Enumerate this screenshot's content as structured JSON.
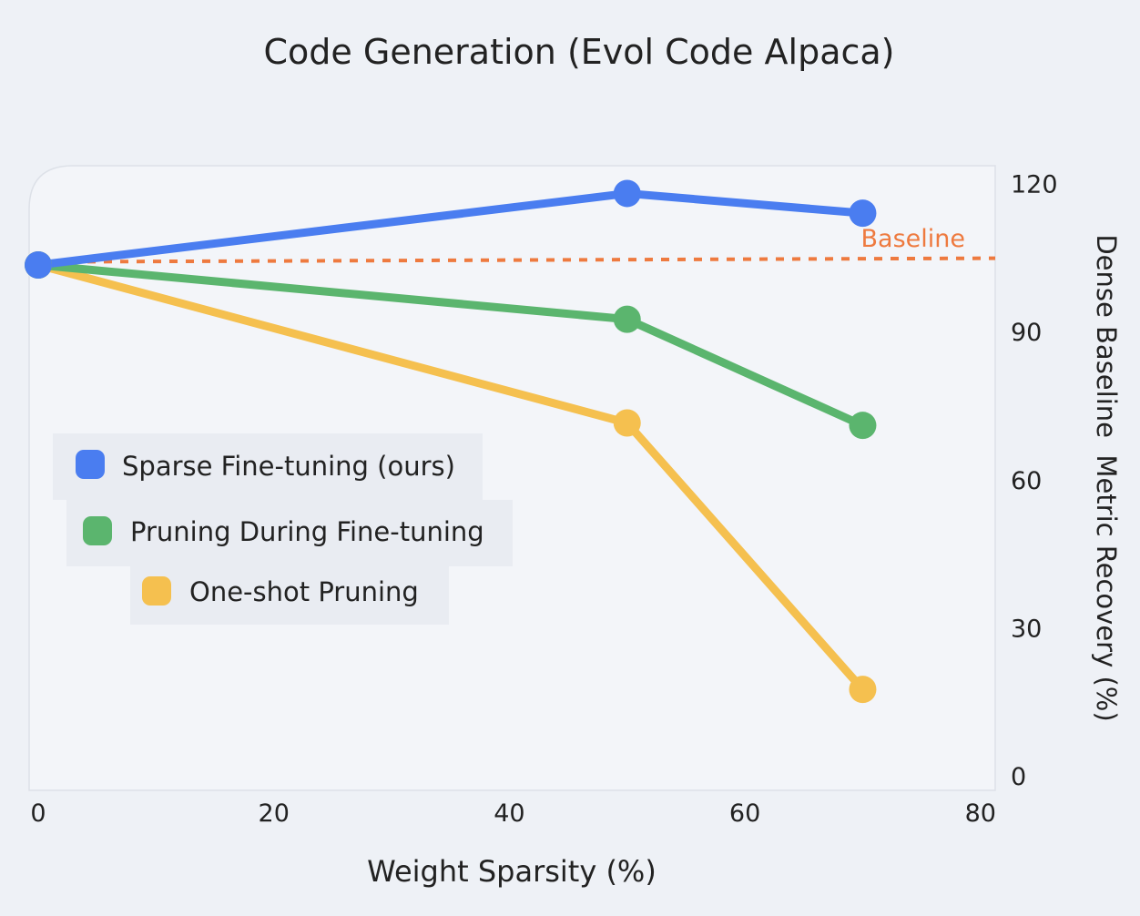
{
  "chart_data": {
    "type": "line",
    "title": "Code Generation (Evol Code Alpaca)",
    "xlabel": "Weight Sparsity (%)",
    "ylabel": "Dense Baseline  Metric Recovery (%)",
    "xlim": [
      0,
      80
    ],
    "ylim": [
      0,
      120
    ],
    "xticks": [
      0,
      20,
      40,
      60,
      80
    ],
    "yticks": [
      0,
      30,
      60,
      90,
      120
    ],
    "y_axis_side": "right",
    "grid": false,
    "legend_placement": "center-left",
    "baseline": {
      "label": "Baseline",
      "y": 104.5,
      "color": "#ee7a3f"
    },
    "series": [
      {
        "name": "Sparse Fine-tuning (ours)",
        "color": "#4a7df0",
        "x": [
          0,
          50,
          70
        ],
        "y": [
          103.5,
          118,
          114
        ]
      },
      {
        "name": "Pruning During Fine-tuning",
        "color": "#5bb56e",
        "x": [
          0,
          50,
          70
        ],
        "y": [
          103.5,
          92.5,
          71
        ]
      },
      {
        "name": "One-shot Pruning",
        "color": "#f5c04f",
        "x": [
          0,
          50,
          70
        ],
        "y": [
          103.5,
          71.5,
          17.5
        ]
      }
    ]
  }
}
